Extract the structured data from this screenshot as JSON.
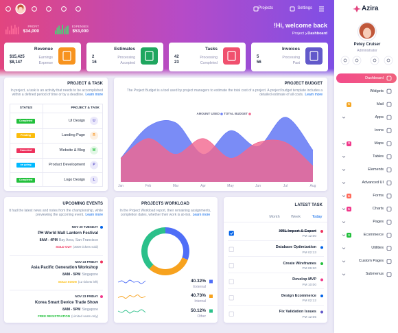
{
  "header": {
    "nav": [
      "Projects",
      "Settings"
    ],
    "bar_lim": [
      0,
      10
    ],
    "stats": [
      {
        "label": "PROFIT",
        "value": "$34,000",
        "color": "#ff6b9a",
        "bars": [
          5,
          8,
          4,
          9,
          6,
          10,
          7,
          8
        ]
      },
      {
        "label": "EXPENSES",
        "value": "$53,000",
        "color": "#3ae374",
        "bars": [
          4,
          7,
          9,
          5,
          10,
          6,
          8,
          9
        ]
      }
    ],
    "welcome": "!Hi, welcome back",
    "breadcrumb": [
      "Project",
      "Dashboard"
    ]
  },
  "cards": [
    {
      "title": "Revenue",
      "color": "#f7931e",
      "rows": [
        {
          "value": "$15,425",
          "label": "Earnings"
        },
        {
          "value": "$8,147",
          "label": "Expense"
        }
      ]
    },
    {
      "title": "Estimates",
      "color": "#1fa65f",
      "rows": [
        {
          "value": 2,
          "label": "Processing"
        },
        {
          "value": 16,
          "label": "Accepted"
        }
      ]
    },
    {
      "title": "Tasks",
      "color": "#f0506e",
      "rows": [
        {
          "value": 42,
          "label": "Processing"
        },
        {
          "value": 23,
          "label": "Completed"
        }
      ]
    },
    {
      "title": "Invoices",
      "color": "#6259ca",
      "rows": [
        {
          "value": 5,
          "label": "Processing"
        },
        {
          "value": 56,
          "label": "Past"
        }
      ]
    }
  ],
  "sidebar": {
    "brand": "Azira",
    "user": "Petey Cruiser",
    "role": "Administrator",
    "menu": [
      {
        "label": "Dashboard",
        "active": true
      },
      {
        "label": "Widgets"
      },
      {
        "label": "Mail",
        "badge": 5,
        "badge_color": "#f5a623"
      },
      {
        "label": "Apps",
        "submenu": true
      },
      {
        "label": "Icons"
      },
      {
        "label": "Maps",
        "submenu": true,
        "badge": 3,
        "badge_color": "#f1388b"
      },
      {
        "label": "Tables",
        "submenu": true
      },
      {
        "label": "Elements",
        "submenu": true
      },
      {
        "label": "Advanced UI",
        "submenu": true
      },
      {
        "label": "Forms",
        "submenu": true,
        "badge": 6,
        "badge_color": "#ff6b5b"
      },
      {
        "label": "Charts",
        "submenu": true,
        "badge": 5,
        "badge_color": "#f1388b"
      },
      {
        "label": "Pages",
        "submenu": true
      },
      {
        "label": "Ecommerce",
        "submenu": true,
        "badge": 3,
        "badge_color": "#22c03c"
      },
      {
        "label": "Utilities",
        "submenu": true
      },
      {
        "label": "Custom Pages",
        "submenu": true
      },
      {
        "label": "Submenus",
        "submenu": true
      }
    ]
  },
  "project_task": {
    "title": "PROJECT & TASK",
    "description": "In project, a task is an activity that needs to be accomplished within a defined period of time or by a deadline.",
    "link": "Learn more",
    "columns": [
      "STATUS",
      "PROJECT & TASK"
    ],
    "rows": [
      {
        "status": "Completed",
        "status_color": "#22c03c",
        "task": "UI Design",
        "initial": "U",
        "initial_color": "#6259ca",
        "initial_bg": "#ebe9fb"
      },
      {
        "status": "Pending",
        "status_color": "#fbbc0b",
        "task": "Landing Page",
        "initial": "R",
        "initial_color": "#f7931e",
        "initial_bg": "#fdf0e1"
      },
      {
        "status": "Canceled",
        "status_color": "#ee335e",
        "task": "Website & Blog",
        "initial": "W",
        "initial_color": "#22c03c",
        "initial_bg": "#e3f7e6"
      },
      {
        "status": "on going",
        "status_color": "#00b9ff",
        "task": "Product Development",
        "initial": "P",
        "initial_color": "#6259ca",
        "initial_bg": "#ebe9fb"
      },
      {
        "status": "Completed",
        "status_color": "#22c03c",
        "task": "Logo Design",
        "initial": "L",
        "initial_color": "#6259ca",
        "initial_bg": "#ebe9fb"
      }
    ]
  },
  "budget": {
    "title": "PROJECT BUDGET",
    "description": "The Project Budget is a tool used by project managers to estimate the total cost of a project. A project budget template includes a detailed estimate of all costs.",
    "link": "Learn more"
  },
  "events": {
    "title": "UPCOMING EVENTS",
    "description": "It had the latest news and notes from the championship, while previewing the upcoming event.",
    "link": "Learn more",
    "items": [
      {
        "date": "NOV 20 TUESDAY",
        "name": "PH World Mall Lantern Festival",
        "time": "8AM - 4PM",
        "place": "Bay Area, San Francisco",
        "status": "SOLD OUT",
        "note": "(3000 tickets sold)",
        "status_color": "#ee335e",
        "dot_color": "#0162e8"
      },
      {
        "date": "NOV 23 FRIDAY",
        "name": "Asia Pacific Generation Workshop",
        "time": "8AM - 5PM",
        "place": "Singapore",
        "status": "SOLD SOON",
        "note": "(12 tickets left)",
        "status_color": "#fbbc0b",
        "dot_color": "#ee335e"
      },
      {
        "date": "NOV 23 FRIDAY",
        "name": "Korea Smart Device Trade Show",
        "time": "8AM - 5PM",
        "place": "Singapore",
        "status": "FREE REGISTRATION",
        "note": "(Limited seats only)",
        "status_color": "#22c03c",
        "dot_color": "#f1388b"
      }
    ]
  },
  "workload": {
    "title": "PROJECTS WORKLOAD",
    "description": "In the Project Workload report, their remaining assignments, completion dates, whether their work is at-risk.",
    "link": "Learn more"
  },
  "latest_task": {
    "title": "LATEST TASK",
    "tabs": [
      "Month",
      "Week",
      "Today"
    ],
    "active_tab": 2,
    "tasks": [
      {
        "name": "XML Import & Export",
        "time": "PM 12:00",
        "done": true,
        "color": "#ee335e"
      },
      {
        "name": "Database Optimization",
        "time": "PM 02:13",
        "color": "#0162e8"
      },
      {
        "name": "Create Wireframes",
        "time": "PM 06:20",
        "color": "#22c03c"
      },
      {
        "name": "Develop MVP",
        "time": "PM 10:00",
        "color": "#f1388b"
      },
      {
        "name": "Design Ecommerce",
        "time": "PM 02:12",
        "color": "#0162e8"
      },
      {
        "name": "Fix Validation Issues",
        "time": "PM 12:05",
        "color": "#6259ca"
      }
    ]
  },
  "chart_data": [
    {
      "type": "area",
      "categories": [
        "Jan",
        "Feb",
        "Mar",
        "Apr",
        "May",
        "Jun",
        "Jul",
        "Aug"
      ],
      "series": [
        {
          "name": "AMOUNT USED",
          "color": "#6b7ff5",
          "values": [
            30,
            70,
            75,
            35,
            65,
            45,
            82,
            40
          ]
        },
        {
          "name": "TOTAL BUDGET",
          "color": "#f3678f",
          "values": [
            30,
            55,
            35,
            55,
            30,
            50,
            50,
            20
          ]
        }
      ],
      "ylim": [
        0,
        100
      ]
    },
    {
      "type": "donut",
      "categories": [
        "External",
        "Internal",
        "Other"
      ],
      "values": [
        40.32,
        40.73,
        50.12
      ],
      "value_labels": [
        "40.32%",
        "40.73%",
        "50.12%"
      ],
      "colors": [
        "#4f6ef7",
        "#f7a21e",
        "#2bc08a"
      ],
      "trends": [
        [
          5,
          7,
          4,
          8,
          5,
          6,
          3,
          7
        ],
        [
          4,
          6,
          3,
          7,
          5,
          8,
          4,
          6
        ],
        [
          6,
          4,
          7,
          3,
          6,
          5,
          8,
          4
        ]
      ],
      "trend_lim": [
        0,
        10
      ]
    }
  ]
}
